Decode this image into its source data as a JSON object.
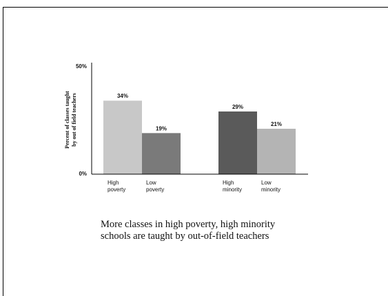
{
  "chart_data": {
    "type": "bar",
    "ylabel_lines": [
      "Percent of classes taught",
      "by out of field teachers"
    ],
    "ylim": [
      0,
      50
    ],
    "y_ticks": [
      "0%",
      "50%"
    ],
    "grid": false,
    "groups": [
      {
        "bars": [
          {
            "label_lines": [
              "High",
              "poverty"
            ],
            "value": 34,
            "value_label": "34%",
            "color": "#c8c8c8"
          },
          {
            "label_lines": [
              "Low",
              "poverty"
            ],
            "value": 19,
            "value_label": "19%",
            "color": "#7a7a7a"
          }
        ]
      },
      {
        "bars": [
          {
            "label_lines": [
              "High",
              "minority"
            ],
            "value": 29,
            "value_label": "29%",
            "color": "#5a5a5a"
          },
          {
            "label_lines": [
              "Low",
              "minority"
            ],
            "value": 21,
            "value_label": "21%",
            "color": "#b4b4b4"
          }
        ]
      }
    ]
  },
  "caption": {
    "lines": [
      "More classes in high poverty, high minority",
      "schools are taught by out-of-field teachers"
    ]
  }
}
